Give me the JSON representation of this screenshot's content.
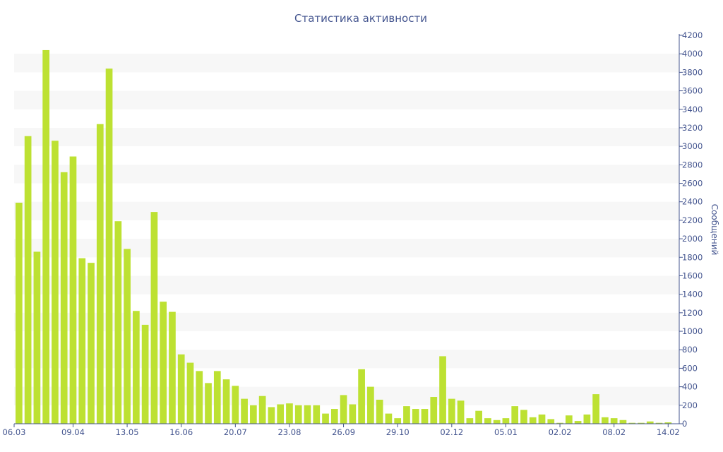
{
  "chart_data": {
    "type": "bar",
    "title": "Статистика активности",
    "ylabel": "Сообщений",
    "xlabel": "",
    "ylim": [
      0,
      4200
    ],
    "y_ticks": [
      0,
      200,
      400,
      600,
      800,
      1000,
      1200,
      1400,
      1600,
      1800,
      2000,
      2200,
      2400,
      2600,
      2800,
      3000,
      3200,
      3400,
      3600,
      3800,
      4000,
      4200
    ],
    "y_axis_position": "right",
    "x_tick_labels": [
      {
        "label": "06.03",
        "index": 0
      },
      {
        "label": "09.04",
        "index": 6
      },
      {
        "label": "13.05",
        "index": 12
      },
      {
        "label": "16.06",
        "index": 18
      },
      {
        "label": "20.07",
        "index": 24
      },
      {
        "label": "23.08",
        "index": 30
      },
      {
        "label": "26.09",
        "index": 36
      },
      {
        "label": "29.10",
        "index": 42
      },
      {
        "label": "02.12",
        "index": 48
      },
      {
        "label": "05.01",
        "index": 54
      },
      {
        "label": "02.02",
        "index": 60
      },
      {
        "label": "08.02",
        "index": 66
      },
      {
        "label": "14.02",
        "index": 72
      }
    ],
    "grid": "horizontal bands",
    "values": [
      2390,
      3110,
      1860,
      4040,
      3060,
      2720,
      2890,
      1790,
      1740,
      3240,
      3840,
      2190,
      1890,
      1220,
      1070,
      2290,
      1320,
      1210,
      750,
      660,
      570,
      440,
      570,
      480,
      410,
      270,
      200,
      300,
      180,
      210,
      220,
      200,
      200,
      200,
      110,
      160,
      310,
      210,
      590,
      400,
      260,
      110,
      60,
      190,
      160,
      160,
      290,
      730,
      270,
      250,
      60,
      140,
      60,
      40,
      60,
      190,
      150,
      70,
      100,
      50,
      10,
      90,
      30,
      100,
      320,
      70,
      60,
      40,
      10,
      10,
      25,
      10,
      15
    ]
  }
}
